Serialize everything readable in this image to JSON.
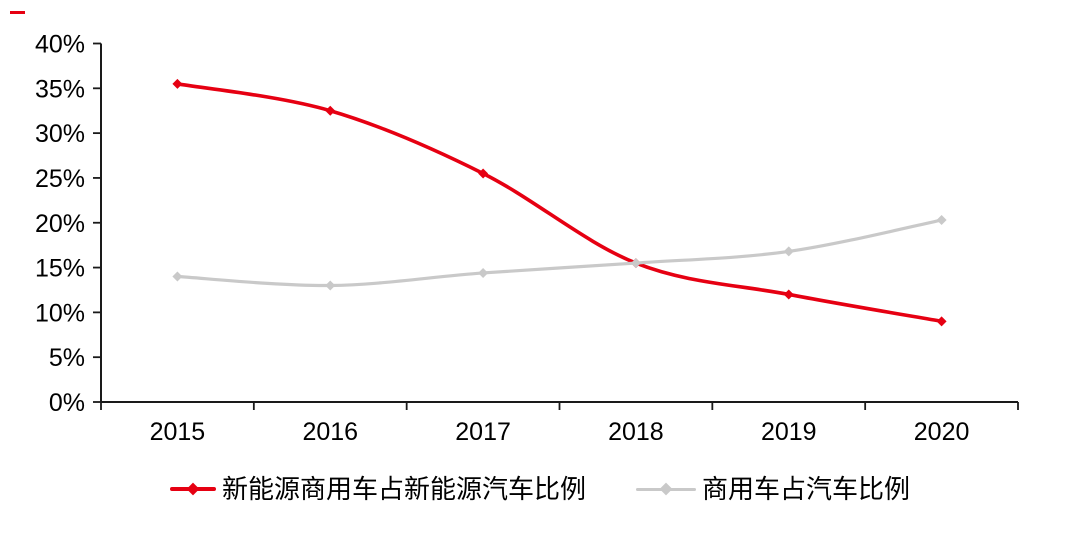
{
  "chart_data": {
    "type": "line",
    "categories": [
      "2015",
      "2016",
      "2017",
      "2018",
      "2019",
      "2020"
    ],
    "series": [
      {
        "name": "新能源商用车占新能源汽车比例",
        "color": "#e60012",
        "marker": "diamond",
        "values": [
          35.5,
          32.5,
          25.5,
          15.5,
          12.0,
          9.0
        ]
      },
      {
        "name": "商用车占汽车比例",
        "color": "#c9c9c9",
        "marker": "diamond",
        "values": [
          14.0,
          13.0,
          14.4,
          15.5,
          16.8,
          20.3
        ]
      }
    ],
    "title": "",
    "xlabel": "",
    "ylabel": "",
    "ylim": [
      0,
      40
    ],
    "ytick_step": 5,
    "ytick_labels": [
      "0%",
      "5%",
      "10%",
      "15%",
      "20%",
      "25%",
      "30%",
      "35%",
      "40%"
    ],
    "grid": false,
    "legend_position": "bottom",
    "line_style": "smooth"
  },
  "decorations": {
    "corner_dash_color": "#e60012"
  },
  "colors": {
    "axis": "#1a1a1a",
    "text": "#000000",
    "background": "#ffffff"
  }
}
